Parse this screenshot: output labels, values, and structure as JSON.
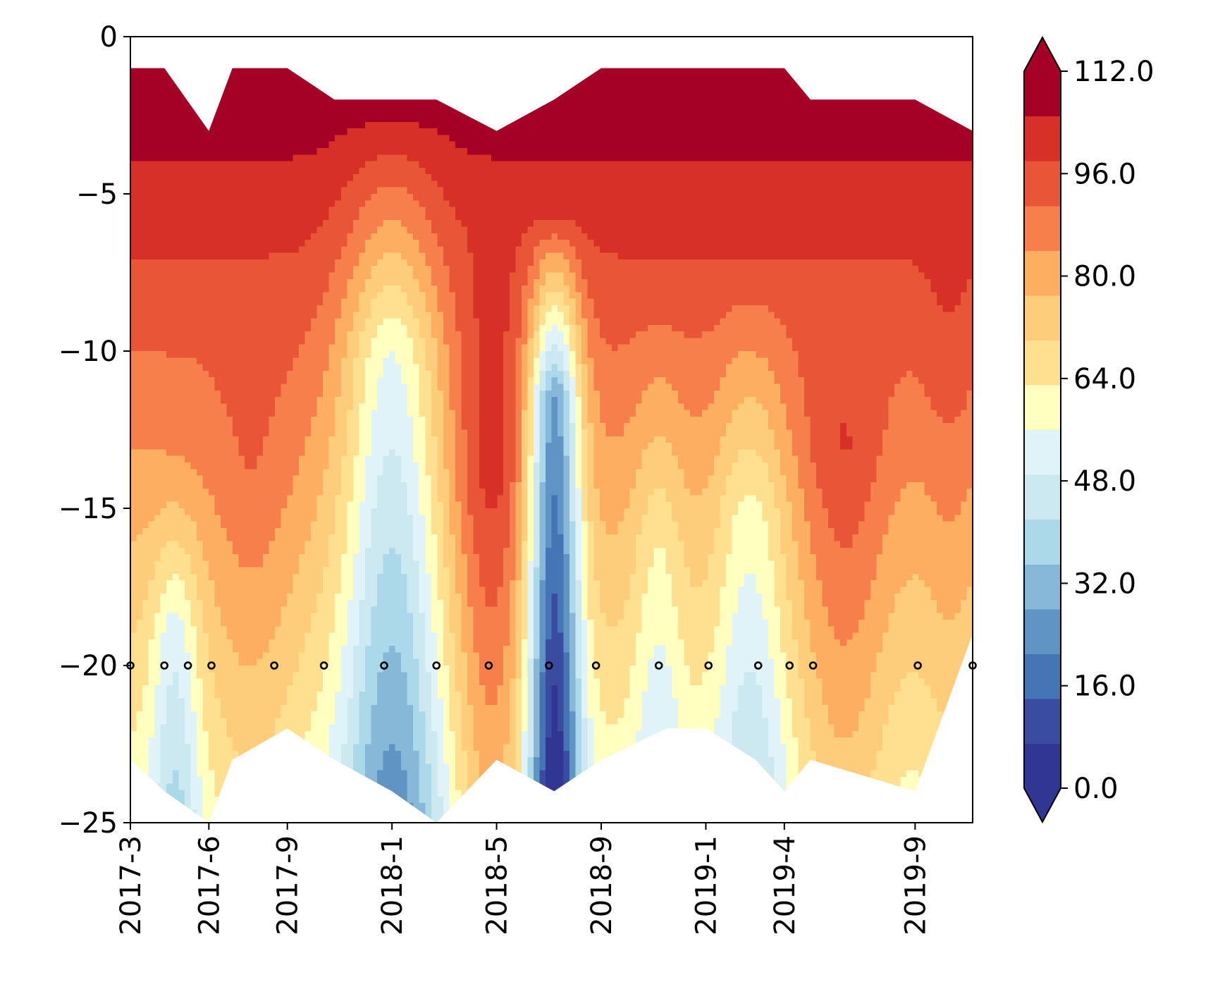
{
  "chart_data": {
    "type": "heatmap",
    "title": "",
    "xlabel": "",
    "ylabel": "",
    "x_ticks": [
      {
        "label": "2017-3",
        "month": 0
      },
      {
        "label": "2017-6",
        "month": 3
      },
      {
        "label": "2017-9",
        "month": 6
      },
      {
        "label": "2018-1",
        "month": 10
      },
      {
        "label": "2018-5",
        "month": 14
      },
      {
        "label": "2018-9",
        "month": 18
      },
      {
        "label": "2019-1",
        "month": 22
      },
      {
        "label": "2019-4",
        "month": 25
      },
      {
        "label": "2019-9",
        "month": 30
      }
    ],
    "xlim": [
      0,
      32.2
    ],
    "y_ticks": [
      {
        "label": "0",
        "value": 0
      },
      {
        "label": "−5",
        "value": -5
      },
      {
        "label": "−10",
        "value": -10
      },
      {
        "label": "−15",
        "value": -15
      },
      {
        "label": "−20",
        "value": -20
      },
      {
        "label": "−25",
        "value": -25
      }
    ],
    "ylim": [
      -25,
      0
    ],
    "colorbar": {
      "min": 0,
      "max": 112,
      "step": 8,
      "extend": "both",
      "tick_labels": [
        "0.0",
        "16.0",
        "32.0",
        "48.0",
        "64.0",
        "80.0",
        "96.0",
        "112.0"
      ],
      "colors": [
        "#313695",
        "#3a4c9f",
        "#4575b4",
        "#5f94c5",
        "#87b8d8",
        "#abd9e9",
        "#cce9f1",
        "#e0f3f8",
        "#ffffbf",
        "#fee090",
        "#fdcd7c",
        "#fdae61",
        "#f67f4b",
        "#e85537",
        "#d73027",
        "#a50026"
      ]
    },
    "profiles": [
      {
        "month": 0,
        "top": -1,
        "bottom": -23
      },
      {
        "month": 1.3,
        "top": -1,
        "bottom": -24
      },
      {
        "month": 3,
        "top": -3,
        "bottom": -25
      },
      {
        "month": 3.9,
        "top": -1,
        "bottom": -23
      },
      {
        "month": 6,
        "top": -1,
        "bottom": -22
      },
      {
        "month": 7.8,
        "top": -2,
        "bottom": -23
      },
      {
        "month": 10,
        "top": -2,
        "bottom": -24
      },
      {
        "month": 11.7,
        "top": -2,
        "bottom": -25
      },
      {
        "month": 14,
        "top": -3,
        "bottom": -23
      },
      {
        "month": 16.2,
        "top": -2,
        "bottom": -24
      },
      {
        "month": 18,
        "top": -1,
        "bottom": -23
      },
      {
        "month": 20.5,
        "top": -1,
        "bottom": -22
      },
      {
        "month": 22,
        "top": -1,
        "bottom": -22
      },
      {
        "month": 23.9,
        "top": -1,
        "bottom": -23
      },
      {
        "month": 25,
        "top": -1,
        "bottom": -24
      },
      {
        "month": 26,
        "top": -2,
        "bottom": -23
      },
      {
        "month": 30,
        "top": -2,
        "bottom": -24
      },
      {
        "month": 32.2,
        "top": -3,
        "bottom": -19
      }
    ],
    "sample_points": {
      "depth": -20,
      "months": [
        0,
        1.3,
        2.2,
        3.1,
        5.5,
        7.4,
        9.7,
        11.7,
        13.7,
        16,
        17.8,
        20.2,
        22.1,
        24,
        25.2,
        26.1,
        30.1,
        32.2
      ]
    }
  }
}
